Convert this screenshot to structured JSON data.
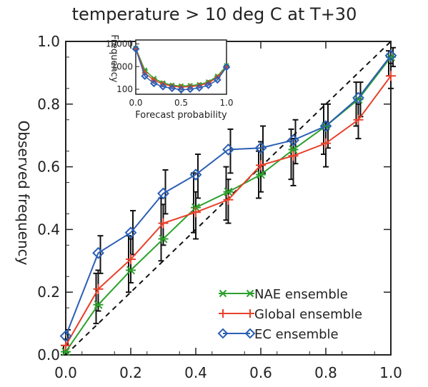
{
  "chart_data": [
    {
      "type": "line",
      "title": "temperature > 10 deg C at T+30",
      "xlabel": "",
      "ylabel": "Observed frequency",
      "xlim": [
        0,
        1
      ],
      "ylim": [
        0,
        1
      ],
      "x_ticks": [
        "0.0",
        "0.2",
        "0.4",
        "0.6",
        "0.8",
        "1.0"
      ],
      "y_ticks": [
        "0.0",
        "0.2",
        "0.4",
        "0.6",
        "0.8",
        "1.0"
      ],
      "x": [
        0.0,
        0.1,
        0.2,
        0.3,
        0.4,
        0.5,
        0.6,
        0.7,
        0.8,
        0.9,
        1.0
      ],
      "diagonal": true,
      "legend_position": "bottom-right",
      "series": [
        {
          "name": "NAE ensemble",
          "color": "#2ca02c",
          "marker": "asterisk",
          "values": [
            0.01,
            0.16,
            0.27,
            0.37,
            0.47,
            0.52,
            0.575,
            0.655,
            0.73,
            0.815,
            0.95
          ],
          "err_low": [
            0.0,
            0.1,
            0.2,
            0.3,
            0.39,
            0.43,
            0.5,
            0.56,
            0.64,
            0.73,
            0.89
          ],
          "err_high": [
            0.03,
            0.26,
            0.38,
            0.5,
            0.58,
            0.6,
            0.65,
            0.72,
            0.8,
            0.87,
            0.97
          ]
        },
        {
          "name": "Global ensemble",
          "color": "#e8402a",
          "marker": "plus",
          "values": [
            0.03,
            0.21,
            0.305,
            0.42,
            0.455,
            0.495,
            0.605,
            0.635,
            0.675,
            0.75,
            0.89
          ],
          "err_low": [
            0.01,
            0.14,
            0.23,
            0.35,
            0.37,
            0.42,
            0.52,
            0.54,
            0.6,
            0.69,
            0.85
          ],
          "err_high": [
            0.05,
            0.27,
            0.37,
            0.48,
            0.52,
            0.56,
            0.68,
            0.69,
            0.74,
            0.8,
            0.93
          ]
        },
        {
          "name": "EC ensemble",
          "color": "#2b5fb4",
          "marker": "diamond",
          "values": [
            0.06,
            0.325,
            0.39,
            0.515,
            0.575,
            0.655,
            0.66,
            0.685,
            0.73,
            0.82,
            0.955
          ],
          "err_low": [
            0.03,
            0.26,
            0.32,
            0.45,
            0.5,
            0.58,
            0.58,
            0.61,
            0.66,
            0.76,
            0.92
          ],
          "err_high": [
            0.08,
            0.38,
            0.46,
            0.59,
            0.64,
            0.72,
            0.73,
            0.75,
            0.8,
            0.87,
            0.98
          ]
        }
      ]
    },
    {
      "type": "line",
      "title": "",
      "xlabel": "Forecast probability",
      "ylabel": "Frequency",
      "xlim": [
        0,
        1
      ],
      "ylim": [
        60,
        15000
      ],
      "y_scale": "log",
      "x_ticks": [
        "0.0",
        "0.5",
        "1.0"
      ],
      "y_ticks": [
        "100",
        "1000",
        "10000"
      ],
      "x": [
        0.0,
        0.1,
        0.2,
        0.3,
        0.4,
        0.5,
        0.6,
        0.7,
        0.8,
        0.9,
        1.0
      ],
      "series": [
        {
          "name": "NAE ensemble",
          "color": "#2ca02c",
          "marker": "asterisk",
          "values": [
            6500,
            700,
            300,
            190,
            150,
            140,
            145,
            160,
            210,
            380,
            1100
          ]
        },
        {
          "name": "Global ensemble",
          "color": "#e8402a",
          "marker": "plus",
          "values": [
            6300,
            520,
            250,
            170,
            135,
            125,
            130,
            145,
            190,
            330,
            950
          ]
        },
        {
          "name": "EC ensemble",
          "color": "#2b5fb4",
          "marker": "diamond",
          "values": [
            6000,
            380,
            180,
            130,
            110,
            95,
            100,
            115,
            150,
            260,
            950
          ]
        }
      ]
    }
  ]
}
